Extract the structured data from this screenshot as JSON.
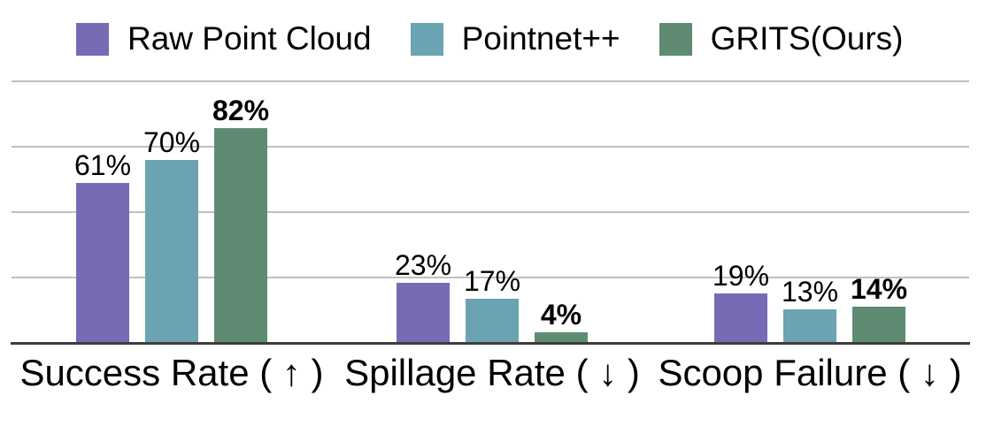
{
  "figure": {
    "background": "#ffffff",
    "text_color": "#000000"
  },
  "chart_data": {
    "type": "bar",
    "title": "",
    "xlabel": "",
    "ylabel": "",
    "categories": [
      "Success Rate ( ↑ )",
      "Spillage Rate ( ↓ )",
      "Scoop Failure ( ↓ )"
    ],
    "series": [
      {
        "name": "Raw Point Cloud",
        "color": "#756cb5",
        "values": [
          61,
          23,
          19
        ],
        "value_labels": [
          "61%",
          "23%",
          "19%"
        ],
        "bold_value_labels": false
      },
      {
        "name": "Pointnet++",
        "color": "#6ba3b2",
        "values": [
          70,
          17,
          13
        ],
        "value_labels": [
          "70%",
          "17%",
          "13%"
        ],
        "bold_value_labels": false
      },
      {
        "name": "GRITS(Ours)",
        "color": "#5f8b73",
        "values": [
          82,
          4,
          14
        ],
        "value_labels": [
          "82%",
          "4%",
          "14%"
        ],
        "bold_value_labels": true
      }
    ],
    "ylim": [
      0,
      100
    ],
    "gridline_values": [
      25,
      50,
      75,
      100
    ],
    "grid_on": true,
    "grid_color": "#c0c0c0",
    "axis_line_color": "#3d3d3d",
    "legend_position": "top"
  }
}
